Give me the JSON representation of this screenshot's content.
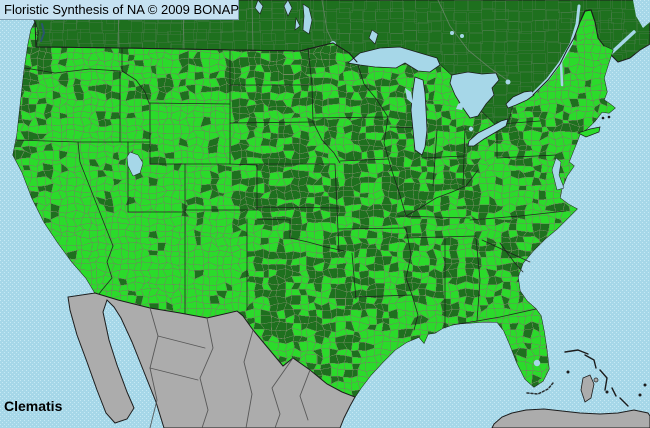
{
  "header": {
    "attribution": "Floristic Synthesis of NA © 2009 BONAP"
  },
  "footer": {
    "taxon": "Clematis"
  },
  "colors": {
    "water": "#a6d7e8",
    "water_dot": "#c6e9f4",
    "county_present_green": "#2bdb2b",
    "state_present_dark_green": "#1e701e",
    "absent_gray": "#acacac",
    "county_line": "#6e8a5e",
    "canada_division_line": "#728772",
    "political_border": "#1c1c1c",
    "mexico_state_line": "#4f4f4f",
    "attribution_bar_bg": "#c6e2f2",
    "text": "#000000"
  }
}
